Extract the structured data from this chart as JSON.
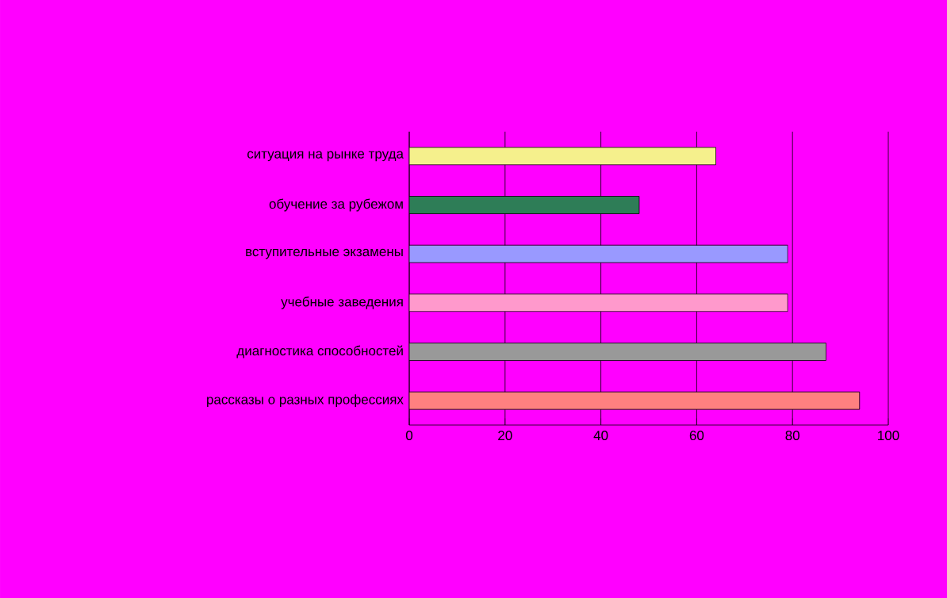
{
  "chart_data": {
    "type": "bar",
    "orientation": "horizontal",
    "categories": [
      "ситуация на рынке труда",
      "обучение за рубежом",
      "вступительные экзамены",
      "учебные заведения",
      "диагностика способностей",
      "рассказы о разных профессиях"
    ],
    "values": [
      64,
      48,
      79,
      79,
      87,
      94
    ],
    "colors": [
      "#f5f08c",
      "#2e7d57",
      "#9999ff",
      "#ff99cc",
      "#999999",
      "#ff8080"
    ],
    "xlim": [
      0,
      100
    ],
    "xticks": [
      0,
      20,
      40,
      60,
      80,
      100
    ],
    "grid": "x"
  }
}
